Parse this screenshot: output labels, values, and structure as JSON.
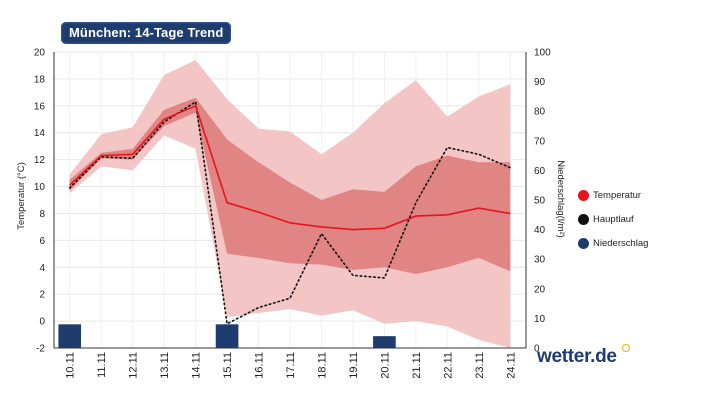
{
  "header": {
    "title": "München: 14-Tage Trend"
  },
  "legend": {
    "items": [
      {
        "label": "Temperatur",
        "color": "#e8141c"
      },
      {
        "label": "Hauptlauf",
        "color": "#111111"
      },
      {
        "label": "Niederschlag",
        "color": "#1f3c6e"
      }
    ]
  },
  "brand": {
    "logo_text": "wetter.de"
  },
  "chart_data": {
    "type": "line",
    "title": "München: 14-Tage Trend",
    "categories": [
      "10.11",
      "11.11",
      "12.11",
      "13.11",
      "14.11",
      "15.11",
      "16.11",
      "17.11",
      "18.11",
      "19.11",
      "20.11",
      "21.11",
      "22.11",
      "23.11",
      "24.11"
    ],
    "ylabel": "Temperatur (°C)",
    "ylim": [
      -2,
      20
    ],
    "yticks": [
      -2,
      0,
      2,
      4,
      6,
      8,
      10,
      12,
      14,
      16,
      18,
      20
    ],
    "y2label": "Niederschlag(l/m²)",
    "y2lim": [
      0,
      100
    ],
    "y2ticks": [
      0,
      10,
      20,
      30,
      40,
      50,
      60,
      70,
      80,
      90,
      100
    ],
    "series": [
      {
        "name": "Temperatur",
        "color": "#e8141c",
        "values": [
          10.1,
          12.3,
          12.4,
          15.0,
          16.0,
          8.8,
          8.1,
          7.3,
          7.0,
          6.8,
          6.9,
          7.8,
          7.9,
          8.4,
          8.0
        ]
      },
      {
        "name": "Hauptlauf",
        "color": "#111111",
        "values": [
          9.9,
          12.2,
          12.1,
          14.8,
          16.3,
          -0.2,
          1.0,
          1.7,
          6.5,
          3.4,
          3.2,
          8.8,
          12.9,
          12.4,
          11.4
        ]
      },
      {
        "name": "Niederschlag",
        "axis": "right",
        "color": "#1f3c6e",
        "values": [
          8,
          0,
          0,
          0,
          0,
          8,
          0,
          0,
          0,
          0,
          4,
          0,
          0,
          0,
          0
        ]
      }
    ],
    "inner_band": {
      "lower": [
        9.7,
        12.1,
        12.0,
        14.5,
        15.5,
        5.0,
        4.7,
        4.3,
        4.2,
        3.8,
        4.0,
        3.5,
        4.0,
        4.7,
        3.7
      ],
      "upper": [
        10.5,
        12.5,
        12.8,
        15.7,
        16.6,
        13.5,
        11.8,
        10.3,
        9.0,
        9.8,
        9.6,
        11.5,
        12.3,
        11.8,
        11.8
      ]
    },
    "outer_band": {
      "lower": [
        9.5,
        11.5,
        11.2,
        13.8,
        12.8,
        0.3,
        0.6,
        0.9,
        0.4,
        0.8,
        -0.2,
        0.0,
        -0.4,
        -1.4,
        -2.0
      ],
      "upper": [
        10.9,
        13.9,
        14.4,
        18.3,
        19.4,
        16.5,
        14.3,
        14.1,
        12.4,
        14.0,
        16.2,
        17.9,
        15.2,
        16.7,
        17.6
      ]
    }
  }
}
